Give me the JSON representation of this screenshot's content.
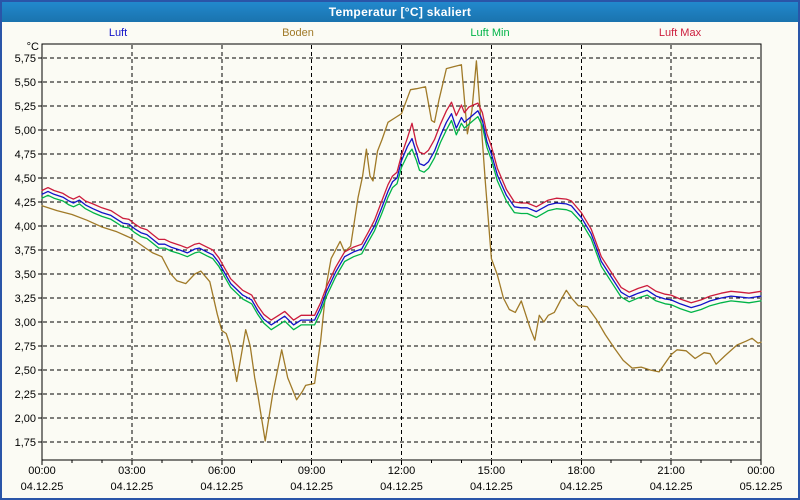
{
  "window": {
    "title": "Temperatur [°C] skaliert"
  },
  "legend": {
    "items": [
      {
        "label": "Luft",
        "color": "#1212c8"
      },
      {
        "label": "Boden",
        "color": "#a07a28"
      },
      {
        "label": "Luft Min",
        "color": "#00b448"
      },
      {
        "label": "Luft Max",
        "color": "#cc1c3c"
      }
    ]
  },
  "chart_data": {
    "type": "line",
    "title": "Temperatur [°C] skaliert",
    "ylabel": "°C",
    "grid": "dashed",
    "legend_position": "top",
    "y_axis": {
      "unit": "°C",
      "min": 1.75,
      "max": 5.75,
      "step": 0.25,
      "ticks": [
        "5,75",
        "5,50",
        "5,25",
        "5,00",
        "4,75",
        "4,50",
        "4,25",
        "4,00",
        "3,75",
        "3,50",
        "3,25",
        "3,00",
        "2,75",
        "2,50",
        "2,25",
        "2,00",
        "1,75"
      ]
    },
    "x_axis": {
      "unit": "hours",
      "min": 0,
      "max": 24,
      "major_step": 3,
      "minor_step": 1,
      "ticks": [
        {
          "h": 0,
          "time": "00:00",
          "date": "04.12.25"
        },
        {
          "h": 3,
          "time": "03:00",
          "date": "04.12.25"
        },
        {
          "h": 6,
          "time": "06:00",
          "date": "04.12.25"
        },
        {
          "h": 9,
          "time": "09:00",
          "date": "04.12.25"
        },
        {
          "h": 12,
          "time": "12:00",
          "date": "04.12.25"
        },
        {
          "h": 15,
          "time": "15:00",
          "date": "04.12.25"
        },
        {
          "h": 18,
          "time": "18:00",
          "date": "04.12.25"
        },
        {
          "h": 21,
          "time": "21:00",
          "date": "04.12.25"
        },
        {
          "h": 24,
          "time": "00:00",
          "date": "05.12.25"
        }
      ]
    },
    "series": [
      {
        "name": "Boden",
        "color": "#a07a28",
        "x": [
          0,
          0.5,
          1,
          1.5,
          2,
          2.5,
          3,
          3.5,
          3.7,
          4,
          4.3,
          4.5,
          4.8,
          5.1,
          5.3,
          5.6,
          5.85,
          6.0,
          6.15,
          6.3,
          6.5,
          6.8,
          6.95,
          7.1,
          7.2,
          7.45,
          7.7,
          8.0,
          8.2,
          8.5,
          8.7,
          8.8,
          9.1,
          9.3,
          9.5,
          9.65,
          9.8,
          9.95,
          10.1,
          10.3,
          10.55,
          10.7,
          10.83,
          10.95,
          11.05,
          11.2,
          11.35,
          11.55,
          11.8,
          12.0,
          12.3,
          12.5,
          12.8,
          13.0,
          13.1,
          13.25,
          13.5,
          13.75,
          14.0,
          14.2,
          14.35,
          14.5,
          14.65,
          14.8,
          15.0,
          15.2,
          15.4,
          15.6,
          15.8,
          16.0,
          16.3,
          16.45,
          16.6,
          16.75,
          16.9,
          17.1,
          17.3,
          17.5,
          17.7,
          17.9,
          18.2,
          18.5,
          18.8,
          19.1,
          19.4,
          19.7,
          20.0,
          20.3,
          20.6,
          21.0,
          21.2,
          21.5,
          21.8,
          22.1,
          22.3,
          22.5,
          22.8,
          23.2,
          23.5,
          23.7,
          23.9,
          24.0
        ],
        "y": [
          4.21,
          4.16,
          4.12,
          4.06,
          3.99,
          3.94,
          3.87,
          3.76,
          3.72,
          3.68,
          3.5,
          3.43,
          3.4,
          3.5,
          3.53,
          3.42,
          3.08,
          2.91,
          2.88,
          2.74,
          2.38,
          2.92,
          2.75,
          2.42,
          2.25,
          1.76,
          2.25,
          2.71,
          2.42,
          2.19,
          2.28,
          2.34,
          2.36,
          2.8,
          3.4,
          3.66,
          3.75,
          3.84,
          3.73,
          3.79,
          4.3,
          4.52,
          4.8,
          4.52,
          4.47,
          4.78,
          4.9,
          5.08,
          5.13,
          5.17,
          5.42,
          5.43,
          5.45,
          5.1,
          5.08,
          5.31,
          5.64,
          5.66,
          5.68,
          4.96,
          5.2,
          5.72,
          5.1,
          4.45,
          3.66,
          3.49,
          3.25,
          3.13,
          3.1,
          3.22,
          2.93,
          2.81,
          3.07,
          3.0,
          3.07,
          3.1,
          3.22,
          3.33,
          3.24,
          3.17,
          3.16,
          3.03,
          2.87,
          2.73,
          2.6,
          2.52,
          2.53,
          2.5,
          2.48,
          2.66,
          2.71,
          2.7,
          2.62,
          2.68,
          2.67,
          2.56,
          2.65,
          2.76,
          2.8,
          2.83,
          2.78,
          2.79
        ]
      },
      {
        "name": "Luft Min",
        "color": "#00b448",
        "x": [
          0,
          0.2,
          0.4,
          0.7,
          0.9,
          1.05,
          1.25,
          1.45,
          1.7,
          2.0,
          2.3,
          2.5,
          2.7,
          2.9,
          3.1,
          3.3,
          3.5,
          3.7,
          3.9,
          4.1,
          4.3,
          4.6,
          4.85,
          5.1,
          5.25,
          5.5,
          5.7,
          5.9,
          6.1,
          6.3,
          6.5,
          6.7,
          7.0,
          7.2,
          7.4,
          7.65,
          7.9,
          8.1,
          8.4,
          8.65,
          8.9,
          9.1,
          9.3,
          9.5,
          9.8,
          10.1,
          10.4,
          10.67,
          10.9,
          11.1,
          11.33,
          11.55,
          11.7,
          11.85,
          12.0,
          12.2,
          12.35,
          12.5,
          12.6,
          12.75,
          12.9,
          13.1,
          13.3,
          13.5,
          13.67,
          13.83,
          14.0,
          14.1,
          14.25,
          14.4,
          14.55,
          14.7,
          14.85,
          15.0,
          15.2,
          15.5,
          15.77,
          16.0,
          16.2,
          16.5,
          16.9,
          17.17,
          17.5,
          17.67,
          18.0,
          18.33,
          18.67,
          19.0,
          19.33,
          19.6,
          19.9,
          20.2,
          20.5,
          20.8,
          21.0,
          21.3,
          21.67,
          22.0,
          22.3,
          22.67,
          23.0,
          23.3,
          23.6,
          24.0
        ],
        "y": [
          4.29,
          4.32,
          4.29,
          4.26,
          4.22,
          4.2,
          4.23,
          4.18,
          4.14,
          4.1,
          4.07,
          4.03,
          3.99,
          3.98,
          3.93,
          3.89,
          3.87,
          3.82,
          3.77,
          3.77,
          3.74,
          3.71,
          3.68,
          3.72,
          3.73,
          3.69,
          3.66,
          3.58,
          3.47,
          3.36,
          3.3,
          3.24,
          3.19,
          3.08,
          2.99,
          2.92,
          2.97,
          3.01,
          2.92,
          2.97,
          2.97,
          2.97,
          3.1,
          3.27,
          3.47,
          3.63,
          3.68,
          3.71,
          3.84,
          3.95,
          4.12,
          4.3,
          4.4,
          4.44,
          4.61,
          4.74,
          4.8,
          4.68,
          4.58,
          4.56,
          4.6,
          4.71,
          4.87,
          5.0,
          5.1,
          4.95,
          5.07,
          5.02,
          5.06,
          5.1,
          5.14,
          5.04,
          4.82,
          4.69,
          4.47,
          4.26,
          4.14,
          4.13,
          4.13,
          4.09,
          4.16,
          4.18,
          4.17,
          4.15,
          4.04,
          3.87,
          3.58,
          3.42,
          3.26,
          3.21,
          3.25,
          3.28,
          3.22,
          3.19,
          3.18,
          3.14,
          3.1,
          3.13,
          3.17,
          3.2,
          3.22,
          3.21,
          3.2,
          3.22
        ]
      },
      {
        "name": "Luft",
        "color": "#1212c8",
        "x": [
          0,
          0.2,
          0.4,
          0.7,
          0.9,
          1.05,
          1.25,
          1.45,
          1.7,
          2.0,
          2.3,
          2.5,
          2.7,
          2.9,
          3.1,
          3.3,
          3.5,
          3.7,
          3.9,
          4.1,
          4.3,
          4.6,
          4.85,
          5.1,
          5.25,
          5.5,
          5.7,
          5.9,
          6.1,
          6.3,
          6.5,
          6.7,
          7.0,
          7.2,
          7.4,
          7.65,
          7.9,
          8.1,
          8.4,
          8.65,
          8.9,
          9.1,
          9.3,
          9.5,
          9.8,
          10.1,
          10.4,
          10.67,
          10.9,
          11.1,
          11.33,
          11.55,
          11.7,
          11.85,
          12.0,
          12.2,
          12.35,
          12.5,
          12.6,
          12.75,
          12.9,
          13.1,
          13.3,
          13.5,
          13.67,
          13.83,
          14.0,
          14.1,
          14.25,
          14.4,
          14.55,
          14.7,
          14.85,
          15.0,
          15.2,
          15.5,
          15.77,
          16.0,
          16.2,
          16.5,
          16.9,
          17.17,
          17.5,
          17.67,
          18.0,
          18.33,
          18.67,
          19.0,
          19.33,
          19.6,
          19.9,
          20.2,
          20.5,
          20.8,
          21.0,
          21.3,
          21.67,
          22.0,
          22.3,
          22.67,
          23.0,
          23.3,
          23.6,
          24.0
        ],
        "y": [
          4.33,
          4.36,
          4.33,
          4.3,
          4.26,
          4.24,
          4.27,
          4.22,
          4.18,
          4.14,
          4.11,
          4.07,
          4.03,
          4.02,
          3.97,
          3.93,
          3.91,
          3.86,
          3.81,
          3.81,
          3.78,
          3.75,
          3.72,
          3.76,
          3.77,
          3.73,
          3.7,
          3.62,
          3.51,
          3.4,
          3.34,
          3.28,
          3.23,
          3.12,
          3.03,
          2.97,
          3.02,
          3.06,
          2.97,
          3.02,
          3.02,
          3.02,
          3.15,
          3.32,
          3.52,
          3.68,
          3.73,
          3.76,
          3.89,
          4.0,
          4.18,
          4.36,
          4.46,
          4.5,
          4.68,
          4.83,
          4.91,
          4.76,
          4.65,
          4.63,
          4.67,
          4.78,
          4.94,
          5.08,
          5.17,
          5.02,
          5.13,
          5.08,
          5.12,
          5.16,
          5.2,
          5.1,
          4.88,
          4.75,
          4.53,
          4.32,
          4.2,
          4.19,
          4.19,
          4.15,
          4.22,
          4.24,
          4.23,
          4.21,
          4.09,
          3.92,
          3.63,
          3.47,
          3.31,
          3.26,
          3.3,
          3.33,
          3.27,
          3.24,
          3.23,
          3.19,
          3.15,
          3.18,
          3.22,
          3.25,
          3.27,
          3.26,
          3.25,
          3.27
        ]
      },
      {
        "name": "Luft Max",
        "color": "#cc1c3c",
        "x": [
          0,
          0.2,
          0.4,
          0.7,
          0.9,
          1.05,
          1.25,
          1.45,
          1.7,
          2.0,
          2.3,
          2.5,
          2.7,
          2.9,
          3.1,
          3.3,
          3.5,
          3.7,
          3.9,
          4.1,
          4.3,
          4.6,
          4.85,
          5.1,
          5.25,
          5.5,
          5.7,
          5.9,
          6.1,
          6.3,
          6.5,
          6.7,
          7.0,
          7.2,
          7.4,
          7.65,
          7.9,
          8.1,
          8.4,
          8.65,
          8.9,
          9.1,
          9.3,
          9.5,
          9.8,
          10.1,
          10.4,
          10.67,
          10.9,
          11.1,
          11.33,
          11.55,
          11.7,
          11.85,
          12.0,
          12.2,
          12.35,
          12.5,
          12.6,
          12.75,
          12.9,
          13.1,
          13.3,
          13.5,
          13.67,
          13.83,
          14.0,
          14.1,
          14.25,
          14.4,
          14.55,
          14.7,
          14.85,
          15.0,
          15.2,
          15.5,
          15.77,
          16.0,
          16.2,
          16.5,
          16.9,
          17.17,
          17.5,
          17.67,
          18.0,
          18.33,
          18.67,
          19.0,
          19.33,
          19.6,
          19.9,
          20.2,
          20.5,
          20.8,
          21.0,
          21.3,
          21.67,
          22.0,
          22.3,
          22.67,
          23.0,
          23.3,
          23.6,
          24.0
        ],
        "y": [
          4.37,
          4.4,
          4.37,
          4.34,
          4.3,
          4.28,
          4.31,
          4.26,
          4.23,
          4.19,
          4.16,
          4.12,
          4.08,
          4.07,
          4.02,
          3.98,
          3.96,
          3.91,
          3.86,
          3.86,
          3.83,
          3.8,
          3.77,
          3.81,
          3.82,
          3.78,
          3.75,
          3.67,
          3.56,
          3.45,
          3.39,
          3.33,
          3.28,
          3.17,
          3.08,
          3.02,
          3.07,
          3.11,
          3.02,
          3.07,
          3.07,
          3.07,
          3.2,
          3.37,
          3.57,
          3.73,
          3.78,
          3.81,
          3.94,
          4.06,
          4.25,
          4.43,
          4.52,
          4.56,
          4.74,
          4.92,
          5.07,
          4.85,
          4.77,
          4.75,
          4.79,
          4.9,
          5.06,
          5.2,
          5.29,
          5.15,
          5.26,
          5.18,
          5.24,
          5.26,
          5.28,
          5.18,
          4.96,
          4.83,
          4.6,
          4.38,
          4.25,
          4.24,
          4.24,
          4.2,
          4.27,
          4.29,
          4.28,
          4.26,
          4.14,
          3.97,
          3.68,
          3.52,
          3.36,
          3.31,
          3.35,
          3.38,
          3.32,
          3.29,
          3.28,
          3.24,
          3.2,
          3.23,
          3.27,
          3.3,
          3.32,
          3.31,
          3.3,
          3.32
        ]
      }
    ]
  }
}
